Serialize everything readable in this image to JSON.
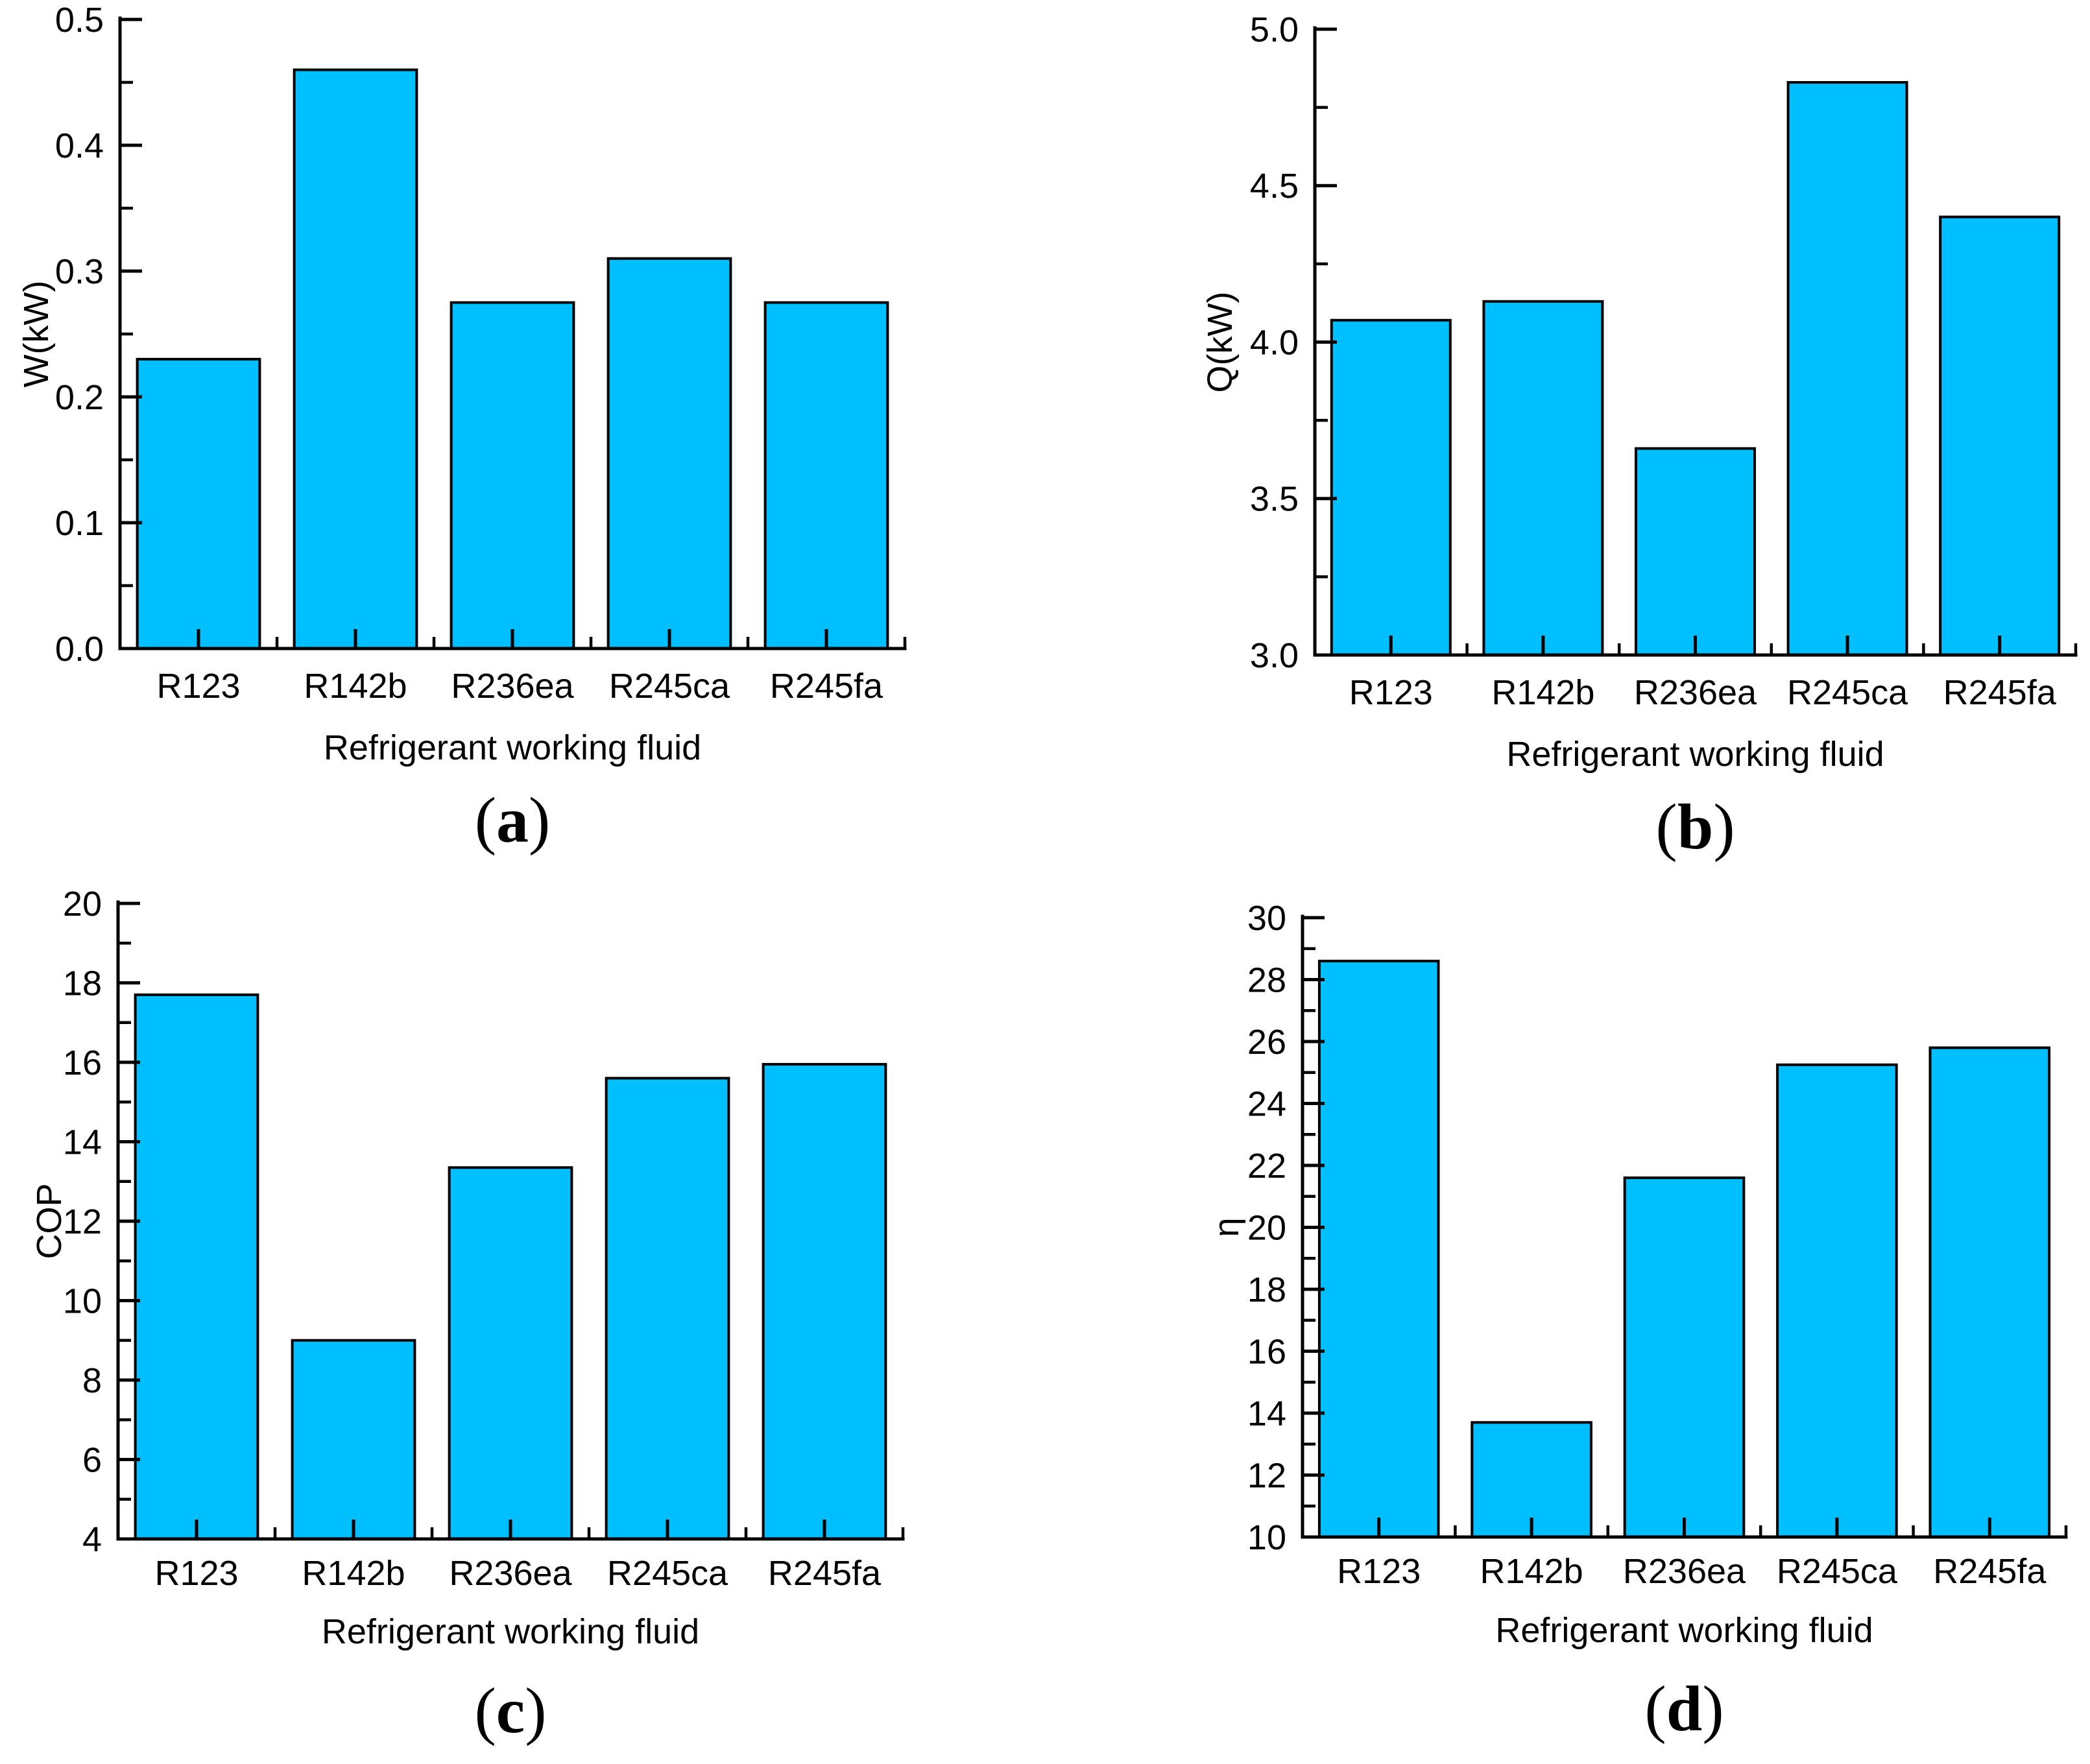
{
  "figure": {
    "background": "#FFFFFF",
    "bar_fill": "#00BFFF",
    "bar_edge": "#000000",
    "text_color": "#000000"
  },
  "chart_data": [
    {
      "type": "bar",
      "caption_open": "(",
      "caption_letter": "a",
      "caption_close": ")",
      "xlabel": "Refrigerant working fluid",
      "ylabel": "W(kW)",
      "categories": [
        "R123",
        "R142b",
        "R236ea",
        "R245ca",
        "R245fa"
      ],
      "values": [
        0.23,
        0.46,
        0.275,
        0.31,
        0.275
      ],
      "ylim": [
        0.0,
        0.5
      ],
      "ytick_step": 0.1,
      "ytick_decimals": 1,
      "ytick_labels": [
        "0.0",
        "0.1",
        "0.2",
        "0.3",
        "0.4",
        "0.5"
      ],
      "minor_ticks_per_interval": 1,
      "grid": "off",
      "legend": "none"
    },
    {
      "type": "bar",
      "caption_open": "(",
      "caption_letter": "b",
      "caption_close": ")",
      "xlabel": "Refrigerant working fluid",
      "ylabel": "Q(kW)",
      "categories": [
        "R123",
        "R142b",
        "R236ea",
        "R245ca",
        "R245fa"
      ],
      "values": [
        4.07,
        4.13,
        3.66,
        4.83,
        4.4
      ],
      "ylim": [
        3.0,
        5.0
      ],
      "ytick_step": 0.5,
      "ytick_decimals": 1,
      "ytick_labels": [
        "3.0",
        "3.5",
        "4.0",
        "4.5",
        "5.0"
      ],
      "minor_ticks_per_interval": 1,
      "grid": "off",
      "legend": "none"
    },
    {
      "type": "bar",
      "caption_open": "(",
      "caption_letter": "c",
      "caption_close": ")",
      "xlabel": "Refrigerant working fluid",
      "ylabel": "COP",
      "categories": [
        "R123",
        "R142b",
        "R236ea",
        "R245ca",
        "R245fa"
      ],
      "values": [
        17.7,
        9.0,
        13.35,
        15.6,
        15.95
      ],
      "ylim": [
        4,
        20
      ],
      "ytick_step": 2,
      "ytick_decimals": 0,
      "ytick_labels": [
        "4",
        "6",
        "8",
        "10",
        "12",
        "14",
        "16",
        "18",
        "20"
      ],
      "minor_ticks_per_interval": 1,
      "grid": "off",
      "legend": "none"
    },
    {
      "type": "bar",
      "caption_open": "(",
      "caption_letter": "d",
      "caption_close": ")",
      "xlabel": "Refrigerant working fluid",
      "ylabel": "η",
      "categories": [
        "R123",
        "R142b",
        "R236ea",
        "R245ca",
        "R245fa"
      ],
      "values": [
        28.6,
        13.7,
        21.6,
        25.25,
        25.8
      ],
      "ylim": [
        10,
        30
      ],
      "ytick_step": 2,
      "ytick_decimals": 0,
      "ytick_labels": [
        "10",
        "12",
        "14",
        "16",
        "18",
        "20",
        "22",
        "24",
        "26",
        "28",
        "30"
      ],
      "minor_ticks_per_interval": 1,
      "grid": "off",
      "legend": "none"
    }
  ]
}
